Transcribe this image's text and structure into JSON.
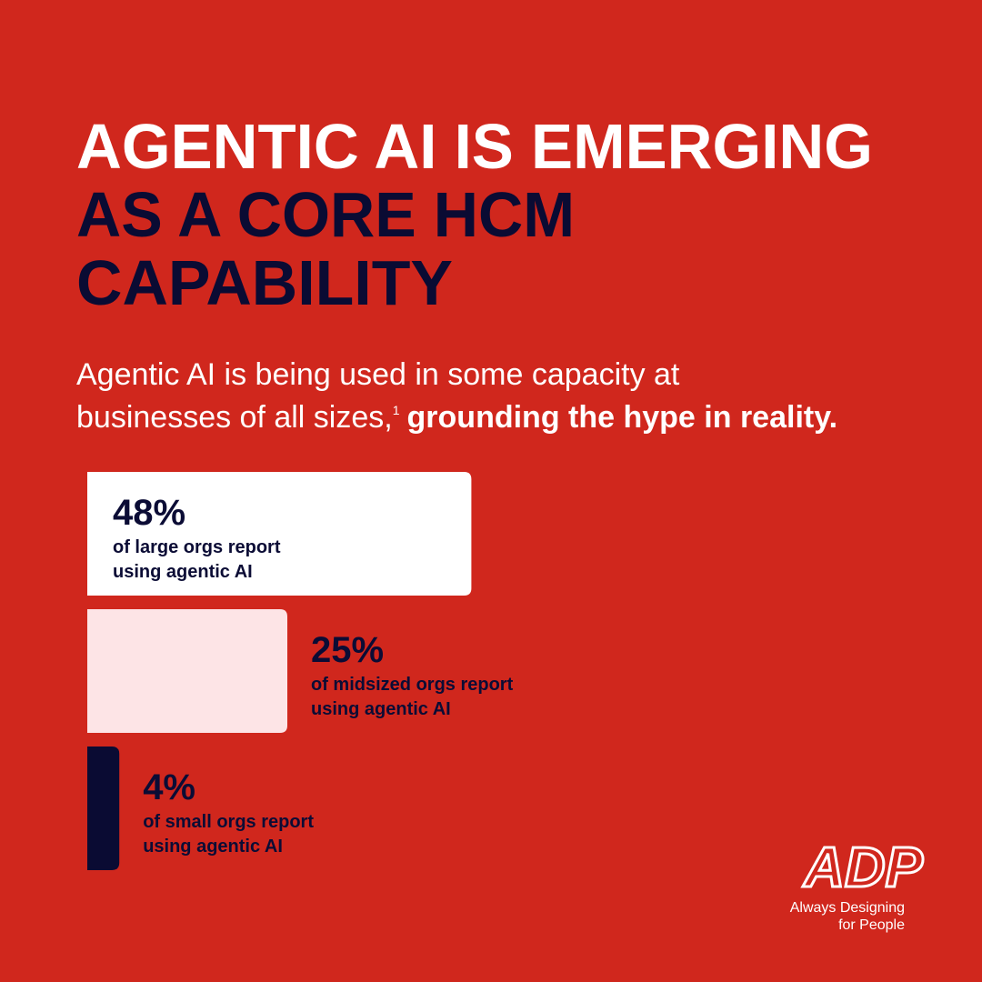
{
  "header": {
    "title_lines": [
      "AGENTIC AI IS EMERGING",
      "AS A CORE HCM",
      "CAPABILITY"
    ],
    "subtitle_line1": "Agentic AI is being used in some capacity at",
    "subtitle_line2": "businesses of all sizes,",
    "footnote": "1",
    "subtitle_bold": "grounding the hype in reality."
  },
  "chart_data": {
    "type": "bar",
    "orientation": "horizontal",
    "categories": [
      [
        "of large orgs report",
        "using agentic AI"
      ],
      [
        "of midsized orgs report",
        "using agentic AI"
      ],
      [
        "of small orgs report",
        "using agentic AI"
      ]
    ],
    "values": [
      48,
      25,
      4
    ],
    "value_labels": [
      "48%",
      "25%",
      "4%"
    ],
    "colors": [
      "#ffffff",
      "#fde4e6",
      "#0a0b33"
    ]
  },
  "logo": {
    "mark": "ADP",
    "tagline": [
      "Always Designing",
      "for People"
    ]
  }
}
